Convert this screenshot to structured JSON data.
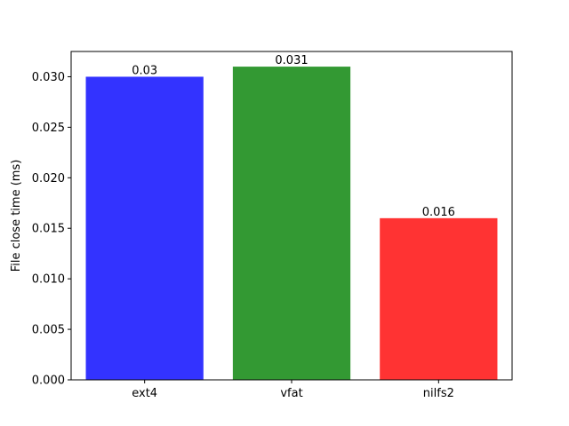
{
  "chart_data": {
    "type": "bar",
    "categories": [
      "ext4",
      "vfat",
      "nilfs2"
    ],
    "values": [
      0.03,
      0.031,
      0.016
    ],
    "data_labels": [
      "0.03",
      "0.031",
      "0.016"
    ],
    "colors": [
      "#3333ff",
      "#339933",
      "#ff3333"
    ],
    "title": "",
    "xlabel": "",
    "ylabel": "File close time (ms)",
    "ylim": [
      0,
      0.0325
    ],
    "yticks": [
      0.0,
      0.005,
      0.01,
      0.015,
      0.02,
      0.025,
      0.03
    ],
    "ytick_labels": [
      "0.000",
      "0.005",
      "0.010",
      "0.015",
      "0.020",
      "0.025",
      "0.030"
    ],
    "grid": false,
    "legend": "none"
  }
}
